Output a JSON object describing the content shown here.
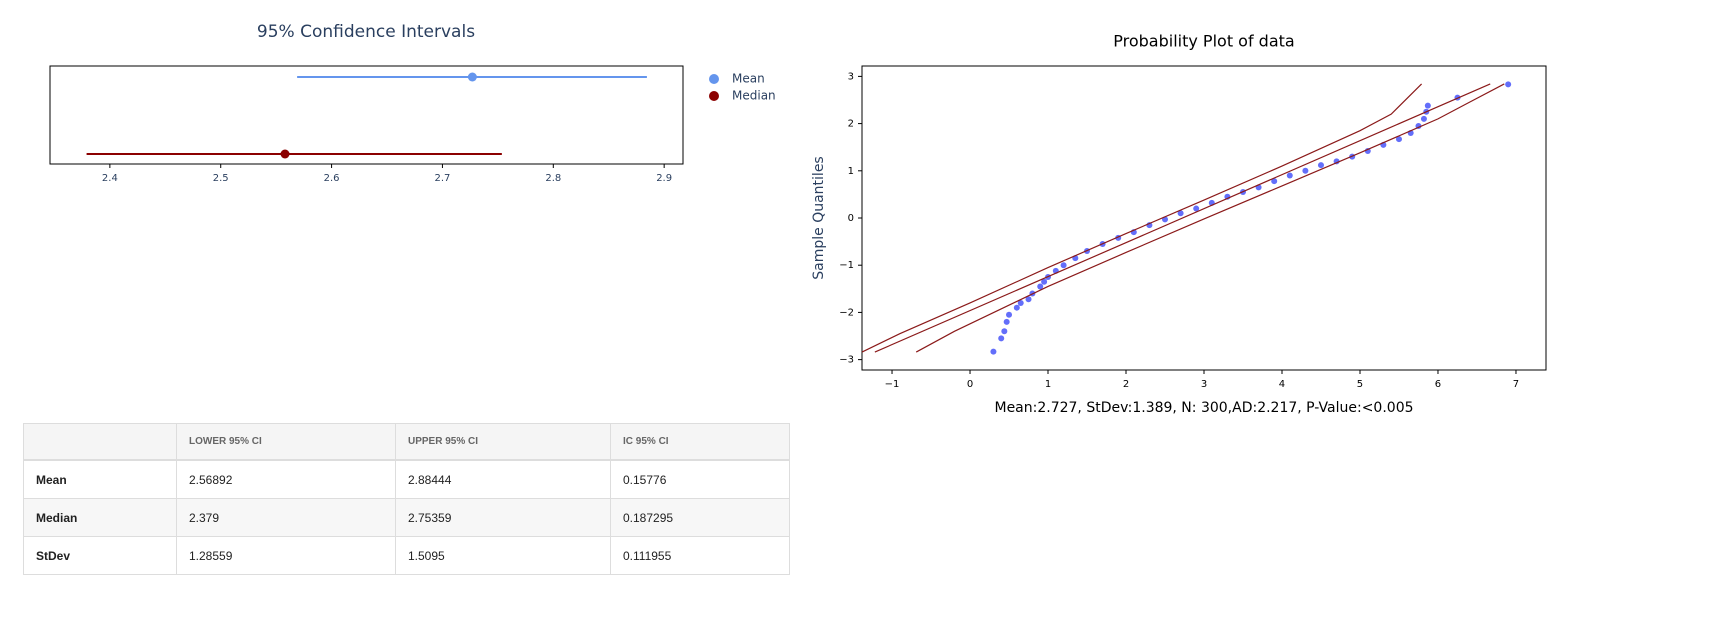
{
  "chart_data": [
    {
      "type": "interval",
      "title": "95% Confidence Intervals",
      "series": [
        {
          "name": "Mean",
          "color": "#6495ed",
          "values": [
            2.727
          ],
          "low": [
            2.56892
          ],
          "high": [
            2.88444
          ]
        },
        {
          "name": "Median",
          "color": "#8b0000",
          "values": [
            2.558
          ],
          "low": [
            2.379
          ],
          "high": [
            2.75359
          ]
        }
      ],
      "xlim": [
        2.346,
        2.917
      ],
      "xticks": [
        2.4,
        2.5,
        2.6,
        2.7,
        2.8,
        2.9
      ]
    },
    {
      "type": "scatter",
      "title": "Probability Plot of data",
      "y_label": "Sample Quantiles",
      "annotation": "Mean:2.727, StDev:1.389, N: 300,AD:2.217, P-Value:<0.005",
      "xlim": [
        -1.385,
        7.385
      ],
      "ylim": [
        -3.22,
        3.22
      ],
      "xticks": [
        {
          "value": -1,
          "label": "−1"
        },
        0,
        1,
        2,
        3,
        4,
        5,
        6,
        7
      ],
      "yticks": [
        {
          "value": -3,
          "label": "−3"
        },
        {
          "value": -2,
          "label": "−2"
        },
        {
          "value": -1,
          "label": "−1"
        },
        0,
        1,
        2,
        3
      ],
      "series": [
        {
          "type": "scatter",
          "color": "#636efa",
          "x": [
            0.3,
            0.4,
            0.44,
            0.47,
            0.5,
            0.6,
            0.65,
            0.75,
            0.8,
            0.9,
            0.95,
            1.0,
            1.1,
            1.2,
            1.35,
            1.5,
            1.7,
            1.9,
            2.1,
            2.3,
            2.5,
            2.7,
            2.9,
            3.1,
            3.3,
            3.5,
            3.7,
            3.9,
            4.1,
            4.3,
            4.5,
            4.7,
            4.9,
            5.1,
            5.3,
            5.5,
            5.65,
            5.75,
            5.82,
            5.85,
            5.87,
            6.25,
            6.9
          ],
          "values": [
            -2.83,
            -2.55,
            -2.4,
            -2.2,
            -2.05,
            -1.9,
            -1.8,
            -1.72,
            -1.6,
            -1.45,
            -1.35,
            -1.25,
            -1.12,
            -1.0,
            -0.85,
            -0.7,
            -0.55,
            -0.42,
            -0.3,
            -0.15,
            -0.03,
            0.1,
            0.2,
            0.32,
            0.45,
            0.55,
            0.65,
            0.78,
            0.9,
            1.0,
            1.12,
            1.2,
            1.3,
            1.42,
            1.55,
            1.67,
            1.8,
            1.95,
            2.1,
            2.25,
            2.38,
            2.55,
            2.83
          ]
        },
        {
          "type": "line",
          "color": "#8b1a1a",
          "x": [
            -1.22,
            6.67
          ],
          "values": [
            -2.84,
            2.84
          ]
        },
        {
          "type": "line",
          "color": "#8b1a1a",
          "x": [
            -1.385,
            -0.9,
            0,
            1,
            2,
            3,
            4,
            5,
            5.4,
            5.79
          ],
          "values": [
            -2.84,
            -2.45,
            -1.8,
            -1.05,
            -0.33,
            0.38,
            1.1,
            1.85,
            2.2,
            2.84
          ]
        },
        {
          "type": "line",
          "color": "#8b1a1a",
          "x": [
            -0.69,
            -0.2,
            1,
            2,
            3,
            4,
            5,
            6,
            6.4,
            6.85
          ],
          "values": [
            -2.84,
            -2.4,
            -1.45,
            -0.73,
            -0.02,
            0.68,
            1.38,
            2.1,
            2.45,
            2.84
          ]
        }
      ]
    }
  ],
  "table": {
    "columns": [
      "LOWER 95% CI",
      "UPPER 95% CI",
      "IC 95% CI"
    ],
    "rows": [
      [
        "Mean",
        "2.56892",
        "2.88444",
        "0.15776"
      ],
      [
        "Median",
        "2.379",
        "2.75359",
        "0.187295"
      ],
      [
        "StDev",
        "1.28559",
        "1.5095",
        "0.111955"
      ]
    ]
  }
}
